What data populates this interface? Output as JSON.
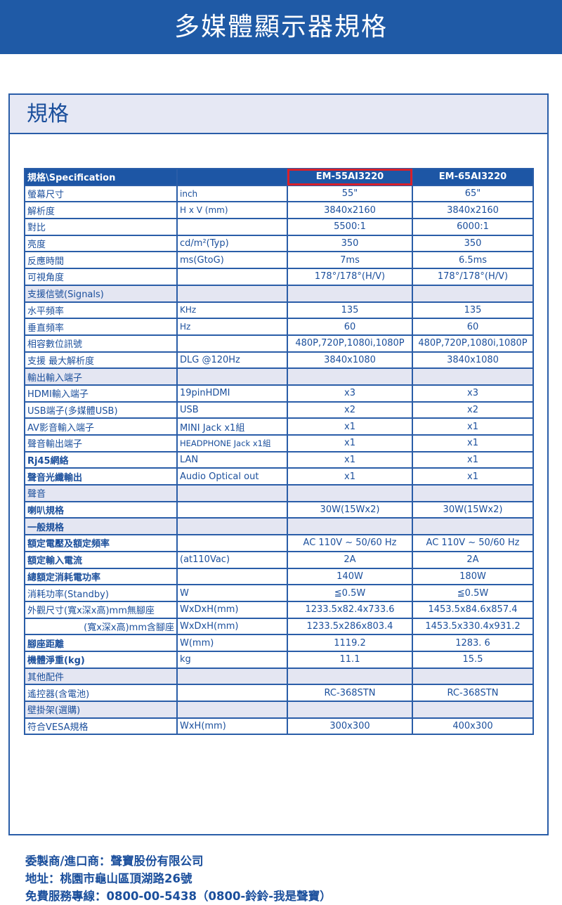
{
  "title": "多媒體顯示器規格",
  "section_title": "規格",
  "table": {
    "header": [
      "規格\\Specification",
      "",
      "EM-55AI3220",
      "EM-65AI3220"
    ],
    "rows": [
      {
        "label": "螢幕尺寸",
        "unit": "inch",
        "a": "55\"",
        "b": "65\""
      },
      {
        "label": "解析度",
        "unit": "H x V (mm)",
        "a": "3840x2160",
        "b": "3840x2160"
      },
      {
        "label": "對比",
        "unit": "",
        "a": "5500:1",
        "b": "6000:1"
      },
      {
        "label": "亮度",
        "unit": "cd/m²(Typ)",
        "a": "350",
        "b": "350"
      },
      {
        "label": "反應時間",
        "unit": "ms(GtoG)",
        "a": "7ms",
        "b": "6.5ms"
      },
      {
        "label": "可視角度",
        "unit": "",
        "a": "178°/178°(H/V)",
        "b": "178°/178°(H/V)"
      },
      {
        "label": "支援信號(Signals)",
        "unit": "",
        "a": "",
        "b": "",
        "section": true
      },
      {
        "label": "水平頻率",
        "unit": "KHz",
        "a": "135",
        "b": "135"
      },
      {
        "label": "垂直頻率",
        "unit": "Hz",
        "a": "60",
        "b": "60"
      },
      {
        "label": "相容數位訊號",
        "unit": "",
        "a": "480P,720P,1080i,1080P",
        "b": "480P,720P,1080i,1080P"
      },
      {
        "label": "支援 最大解析度",
        "unit": " DLG  @120Hz",
        "a": "3840x1080",
        "b": "3840x1080"
      },
      {
        "label": "輸出輸入端子",
        "unit": "",
        "a": "",
        "b": "",
        "section": true
      },
      {
        "label": "HDMI輸入端子",
        "unit": "19pinHDMI",
        "a": "x3",
        "b": "x3"
      },
      {
        "label": "USB端子(多媒體USB)",
        "unit": "USB",
        "a": "x2",
        "b": "x2"
      },
      {
        "label": "AV影音輸入端子",
        "unit": "MINI Jack x1組",
        "a": "x1",
        "b": "x1"
      },
      {
        "label": "聲音輸出端子",
        "unit": "HEADPHONE Jack x1組",
        "a": "x1",
        "b": "x1"
      },
      {
        "label": "Rj45網絡",
        "unit": "LAN",
        "a": "x1",
        "b": "x1",
        "bold": true
      },
      {
        "label": "聲音光纖輸出",
        "unit": "Audio Optical out",
        "a": "x1",
        "b": "x1",
        "bold": true
      },
      {
        "label": "聲音",
        "unit": "",
        "a": "",
        "b": "",
        "section": true
      },
      {
        "label": "喇叭規格",
        "unit": "",
        "a": "30W(15Wx2)",
        "b": "30W(15Wx2)",
        "bold": true
      },
      {
        "label": "一般規格",
        "unit": "",
        "a": "",
        "b": "",
        "section": true,
        "bold": true
      },
      {
        "label": "額定電壓及額定頻率",
        "unit": "",
        "a": "AC 110V ~  50/60 Hz",
        "b": "AC 110V ~  50/60 Hz",
        "bold": true
      },
      {
        "label": "額定輸入電流",
        "unit": "(at110Vac)",
        "a": "2A",
        "b": "2A",
        "bold": true
      },
      {
        "label": "總額定消耗電功率",
        "unit": "",
        "a": "140W",
        "b": "180W",
        "bold": true
      },
      {
        "label": "消耗功率(Standby)",
        "unit": "W",
        "a": "≦0.5W",
        "b": "≦0.5W"
      },
      {
        "label": "外觀尺寸(寬x深x高)mm無腳座",
        "unit": "WxDxH(mm)",
        "a": "1233.5x82.4x733.6",
        "b": "1453.5x84.6x857.4"
      },
      {
        "label": "(寬x深x高)mm含腳座",
        "unit": "WxDxH(mm)",
        "a": "1233.5x286x803.4",
        "b": "1453.5x330.4x931.2",
        "indent": true
      },
      {
        "label": "腳座距離",
        "unit": "W(mm)",
        "a": "1119.2",
        "b": "1283. 6",
        "bold": true
      },
      {
        "label": "機體淨重(kg)",
        "unit": "kg",
        "a": "11.1",
        "b": "15.5",
        "bold": true
      },
      {
        "label": "其他配件",
        "unit": "",
        "a": "",
        "b": "",
        "section": true
      },
      {
        "label": "遙控器(含電池)",
        "unit": "",
        "a": "RC-368STN",
        "b": "RC-368STN"
      },
      {
        "label": "壁掛架(選購)",
        "unit": "",
        "a": "",
        "b": "",
        "section": true
      },
      {
        "label": "符合VESA規格",
        "unit": "WxH(mm)",
        "a": "300x300",
        "b": "400x300"
      }
    ]
  },
  "footer": [
    "委製商/進口商：聲寶股份有限公司",
    "地址：桃園市龜山區頂湖路26號",
    "免費服務專線：0800-00-5438（0800-鈴鈴-我是聲寶）"
  ],
  "colors": {
    "brand": "#1f5aa6",
    "section_bg": "#e4e6f2",
    "highlight": "#d8202a"
  }
}
